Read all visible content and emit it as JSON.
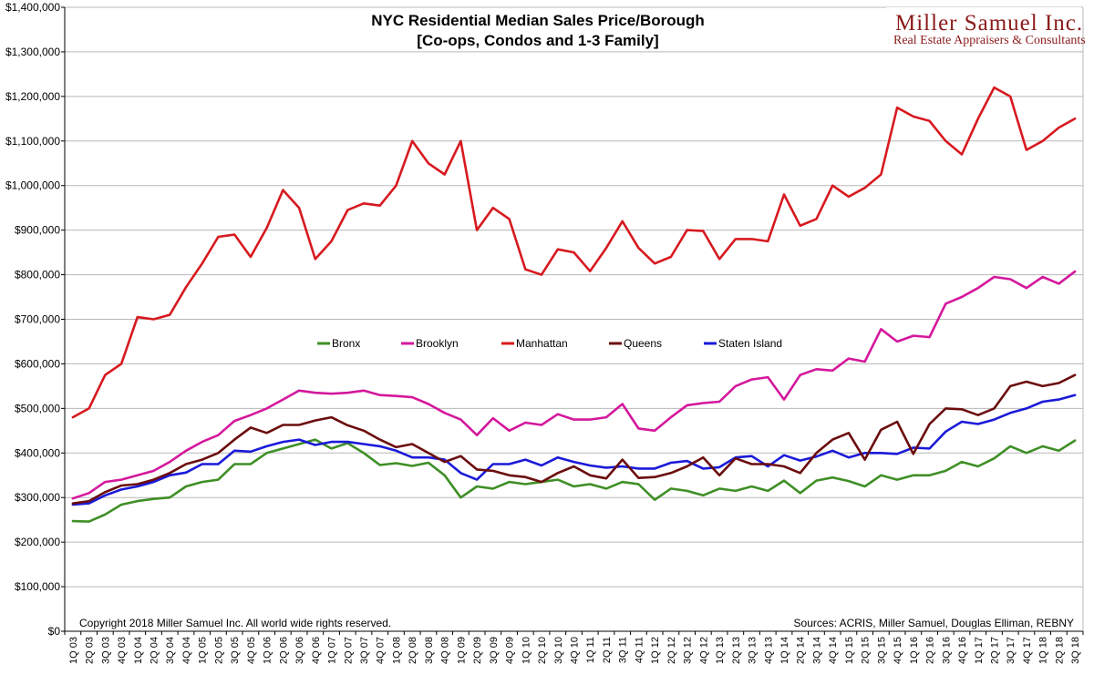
{
  "title_line1": "NYC Residential Median Sales Price/Borough",
  "title_line2": "[Co-ops, Condos and 1-3 Family]",
  "logo": {
    "main": "Miller Samuel Inc.",
    "sub": "Real Estate Appraisers & Consultants",
    "color": "#8b1a1a"
  },
  "footer": {
    "copyright": "Copyright 2018 Miller Samuel Inc.  All world wide rights reserved.",
    "sources": "Sources: ACRIS, Miller Samuel, Douglas Elliman, REBNY"
  },
  "chart_data": {
    "type": "line",
    "title": "NYC Residential Median Sales Price/Borough [Co-ops, Condos and 1-3 Family]",
    "xlabel": "",
    "ylabel": "",
    "ylim": [
      0,
      1400000
    ],
    "y_ticks": [
      "$0",
      "$100,000",
      "$200,000",
      "$300,000",
      "$400,000",
      "$500,000",
      "$600,000",
      "$700,000",
      "$800,000",
      "$900,000",
      "$1,000,000",
      "$1,100,000",
      "$1,200,000",
      "$1,300,000",
      "$1,400,000"
    ],
    "grid": true,
    "legend_position": "center-left",
    "categories": [
      "1Q 03",
      "2Q 03",
      "3Q 03",
      "4Q 03",
      "1Q 04",
      "2Q 04",
      "3Q 04",
      "4Q 04",
      "1Q 05",
      "2Q 05",
      "3Q 05",
      "4Q 05",
      "1Q 06",
      "2Q 06",
      "3Q 06",
      "4Q 06",
      "1Q 07",
      "2Q 07",
      "3Q 07",
      "4Q 07",
      "1Q 08",
      "2Q 08",
      "3Q 08",
      "4Q 08",
      "1Q 09",
      "2Q 09",
      "3Q 09",
      "4Q 09",
      "1Q 10",
      "2Q 10",
      "3Q 10",
      "4Q 10",
      "1Q 11",
      "2Q 11",
      "3Q 11",
      "4Q 11",
      "1Q 12",
      "2Q 12",
      "3Q 12",
      "4Q 12",
      "1Q 13",
      "2Q 13",
      "3Q 13",
      "4Q 13",
      "1Q 14",
      "2Q 14",
      "3Q 14",
      "4Q 14",
      "1Q 15",
      "2Q 15",
      "3Q 15",
      "4Q 15",
      "1Q 16",
      "2Q 16",
      "3Q 16",
      "4Q 16",
      "1Q 17",
      "2Q 17",
      "3Q 17",
      "4Q 17",
      "1Q 18",
      "2Q 18",
      "3Q 18"
    ],
    "series": [
      {
        "name": "Bronx",
        "color": "#3f8f26",
        "values": [
          247000,
          246000,
          262000,
          284000,
          292000,
          297000,
          300000,
          325000,
          335000,
          340000,
          375000,
          375000,
          400000,
          410000,
          420000,
          430000,
          410000,
          422000,
          400000,
          373000,
          377000,
          371000,
          378000,
          350000,
          300000,
          325000,
          320000,
          335000,
          330000,
          335000,
          340000,
          325000,
          330000,
          320000,
          335000,
          330000,
          295000,
          320000,
          315000,
          305000,
          320000,
          315000,
          325000,
          315000,
          338000,
          310000,
          338000,
          345000,
          337000,
          325000,
          350000,
          340000,
          350000,
          350000,
          360000,
          380000,
          370000,
          388000,
          415000,
          400000,
          415000,
          405000,
          428000
        ]
      },
      {
        "name": "Brooklyn",
        "color": "#d4189c",
        "values": [
          298000,
          310000,
          335000,
          340000,
          350000,
          360000,
          380000,
          405000,
          425000,
          440000,
          472000,
          485000,
          500000,
          520000,
          540000,
          535000,
          533000,
          535000,
          540000,
          530000,
          528000,
          525000,
          510000,
          490000,
          475000,
          440000,
          478000,
          450000,
          468000,
          463000,
          487000,
          475000,
          475000,
          480000,
          510000,
          455000,
          450000,
          480000,
          507000,
          512000,
          515000,
          550000,
          565000,
          570000,
          520000,
          575000,
          588000,
          585000,
          612000,
          605000,
          678000,
          650000,
          663000,
          660000,
          735000,
          750000,
          770000,
          795000,
          790000,
          770000,
          795000,
          780000,
          807000
        ]
      },
      {
        "name": "Manhattan",
        "color": "#d7191f",
        "values": [
          480000,
          500000,
          575000,
          600000,
          705000,
          700000,
          710000,
          772000,
          825000,
          885000,
          890000,
          840000,
          905000,
          990000,
          950000,
          835000,
          875000,
          945000,
          960000,
          955000,
          1000000,
          1100000,
          1050000,
          1025000,
          1100000,
          900000,
          950000,
          925000,
          812000,
          800000,
          857000,
          850000,
          808000,
          860000,
          920000,
          860000,
          825000,
          840000,
          900000,
          898000,
          835000,
          880000,
          880000,
          875000,
          980000,
          910000,
          925000,
          1000000,
          975000,
          995000,
          1025000,
          1175000,
          1155000,
          1145000,
          1100000,
          1070000,
          1150000,
          1220000,
          1200000,
          1080000,
          1100000,
          1130000,
          1150000
        ]
      },
      {
        "name": "Queens",
        "color": "#6b0d0d",
        "values": [
          287000,
          292000,
          312000,
          327000,
          330000,
          340000,
          355000,
          375000,
          385000,
          400000,
          430000,
          457000,
          445000,
          463000,
          463000,
          473000,
          480000,
          462000,
          450000,
          430000,
          413000,
          420000,
          400000,
          380000,
          393000,
          363000,
          360000,
          350000,
          346000,
          335000,
          355000,
          370000,
          350000,
          343000,
          385000,
          344000,
          346000,
          355000,
          370000,
          390000,
          350000,
          388000,
          375000,
          375000,
          370000,
          355000,
          400000,
          430000,
          445000,
          385000,
          452000,
          470000,
          398000,
          465000,
          500000,
          498000,
          485000,
          500000,
          550000,
          560000,
          550000,
          557000,
          575000
        ]
      },
      {
        "name": "Staten Island",
        "color": "#1a1ad9",
        "values": [
          284000,
          287000,
          305000,
          318000,
          325000,
          335000,
          350000,
          356000,
          375000,
          375000,
          405000,
          403000,
          415000,
          425000,
          430000,
          418000,
          425000,
          425000,
          420000,
          415000,
          405000,
          390000,
          390000,
          385000,
          355000,
          340000,
          375000,
          375000,
          385000,
          372000,
          390000,
          380000,
          372000,
          367000,
          370000,
          365000,
          365000,
          378000,
          382000,
          365000,
          368000,
          390000,
          393000,
          370000,
          395000,
          383000,
          392000,
          405000,
          390000,
          400000,
          400000,
          398000,
          412000,
          410000,
          448000,
          470000,
          465000,
          475000,
          490000,
          500000,
          515000,
          520000,
          530000
        ]
      }
    ]
  }
}
